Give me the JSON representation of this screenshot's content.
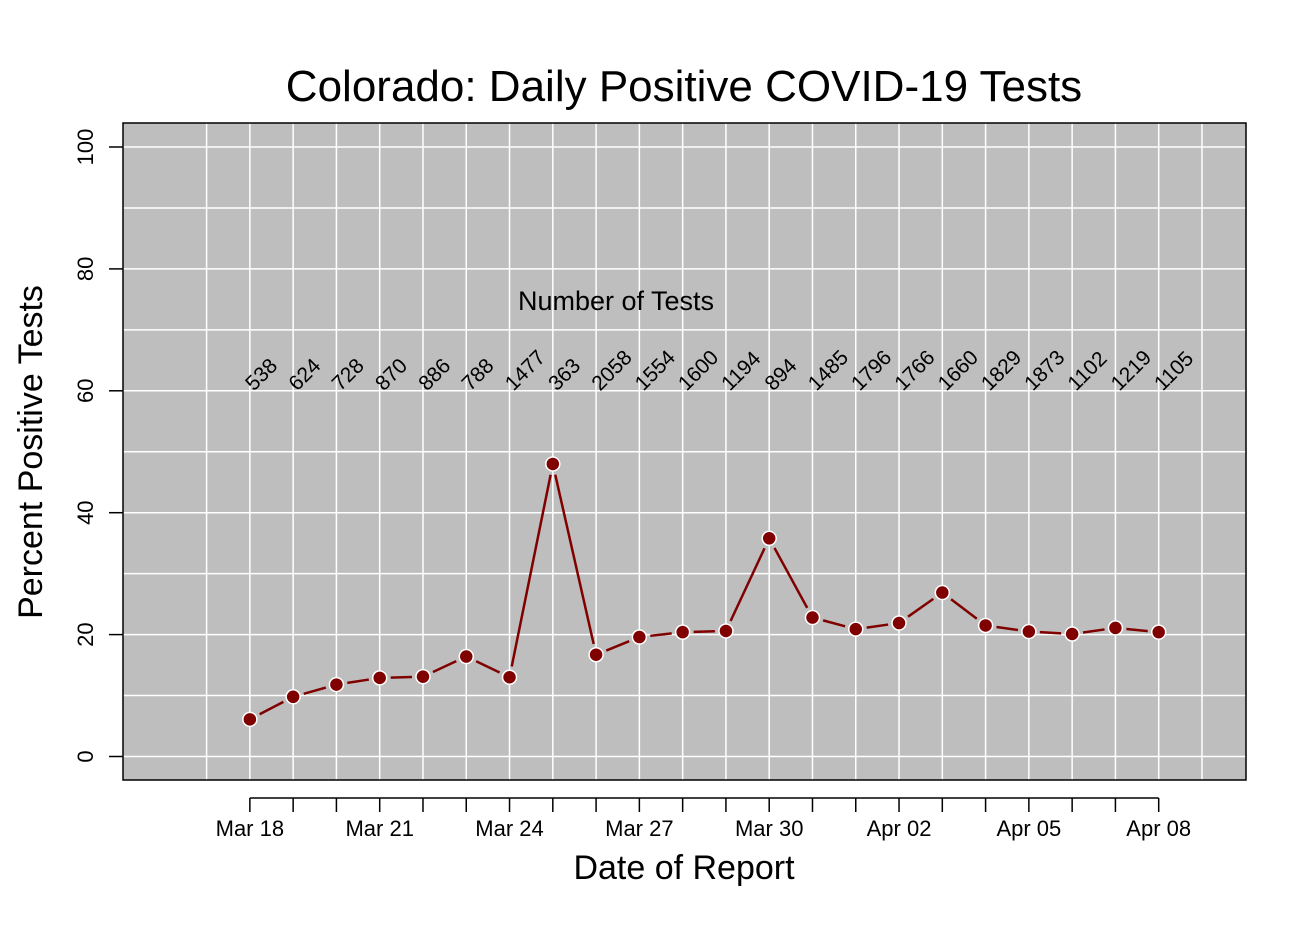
{
  "chart_data": {
    "type": "line",
    "title": "Colorado: Daily Positive COVID-19 Tests",
    "xlabel": "Date of Report",
    "ylabel": "Percent Positive Tests",
    "ylim": [
      0,
      100
    ],
    "yticks": [
      "0",
      "20",
      "40",
      "60",
      "80",
      "100"
    ],
    "xlim": [
      "Mar 16",
      "Apr 09"
    ],
    "xtick_labels": [
      {
        "date": "Mar 18",
        "label": "Mar 18"
      },
      {
        "date": "Mar 21",
        "label": "Mar 21"
      },
      {
        "date": "Mar 24",
        "label": "Mar 24"
      },
      {
        "date": "Mar 27",
        "label": "Mar 27"
      },
      {
        "date": "Mar 30",
        "label": "Mar 30"
      },
      {
        "date": "Apr 02",
        "label": "Apr 02"
      },
      {
        "date": "Apr 05",
        "label": "Apr 05"
      },
      {
        "date": "Apr 08",
        "label": "Apr 08"
      }
    ],
    "grid": true,
    "background_color": "#bebebe",
    "line_color": "#800000",
    "annotation": "Number of Tests",
    "series": [
      {
        "points": [
          {
            "date": "Mar 18",
            "y": 6.1,
            "tests": "538"
          },
          {
            "date": "Mar 19",
            "y": 9.8,
            "tests": "624"
          },
          {
            "date": "Mar 20",
            "y": 11.8,
            "tests": "728"
          },
          {
            "date": "Mar 21",
            "y": 12.9,
            "tests": "870"
          },
          {
            "date": "Mar 22",
            "y": 13.1,
            "tests": "886"
          },
          {
            "date": "Mar 23",
            "y": 16.4,
            "tests": "788"
          },
          {
            "date": "Mar 24",
            "y": 13.0,
            "tests": "1477"
          },
          {
            "date": "Mar 25",
            "y": 48.0,
            "tests": "363"
          },
          {
            "date": "Mar 26",
            "y": 16.7,
            "tests": "2058"
          },
          {
            "date": "Mar 27",
            "y": 19.6,
            "tests": "1554"
          },
          {
            "date": "Mar 28",
            "y": 20.4,
            "tests": "1600"
          },
          {
            "date": "Mar 29",
            "y": 20.6,
            "tests": "1194"
          },
          {
            "date": "Mar 30",
            "y": 35.8,
            "tests": "894"
          },
          {
            "date": "Mar 31",
            "y": 22.8,
            "tests": "1485"
          },
          {
            "date": "Apr 01",
            "y": 20.9,
            "tests": "1796"
          },
          {
            "date": "Apr 02",
            "y": 21.9,
            "tests": "1766"
          },
          {
            "date": "Apr 03",
            "y": 26.9,
            "tests": "1660"
          },
          {
            "date": "Apr 04",
            "y": 21.5,
            "tests": "1829"
          },
          {
            "date": "Apr 05",
            "y": 20.5,
            "tests": "1873"
          },
          {
            "date": "Apr 06",
            "y": 20.1,
            "tests": "1102"
          },
          {
            "date": "Apr 07",
            "y": 21.1,
            "tests": "1219"
          },
          {
            "date": "Apr 08",
            "y": 20.4,
            "tests": "1105"
          }
        ]
      }
    ]
  }
}
